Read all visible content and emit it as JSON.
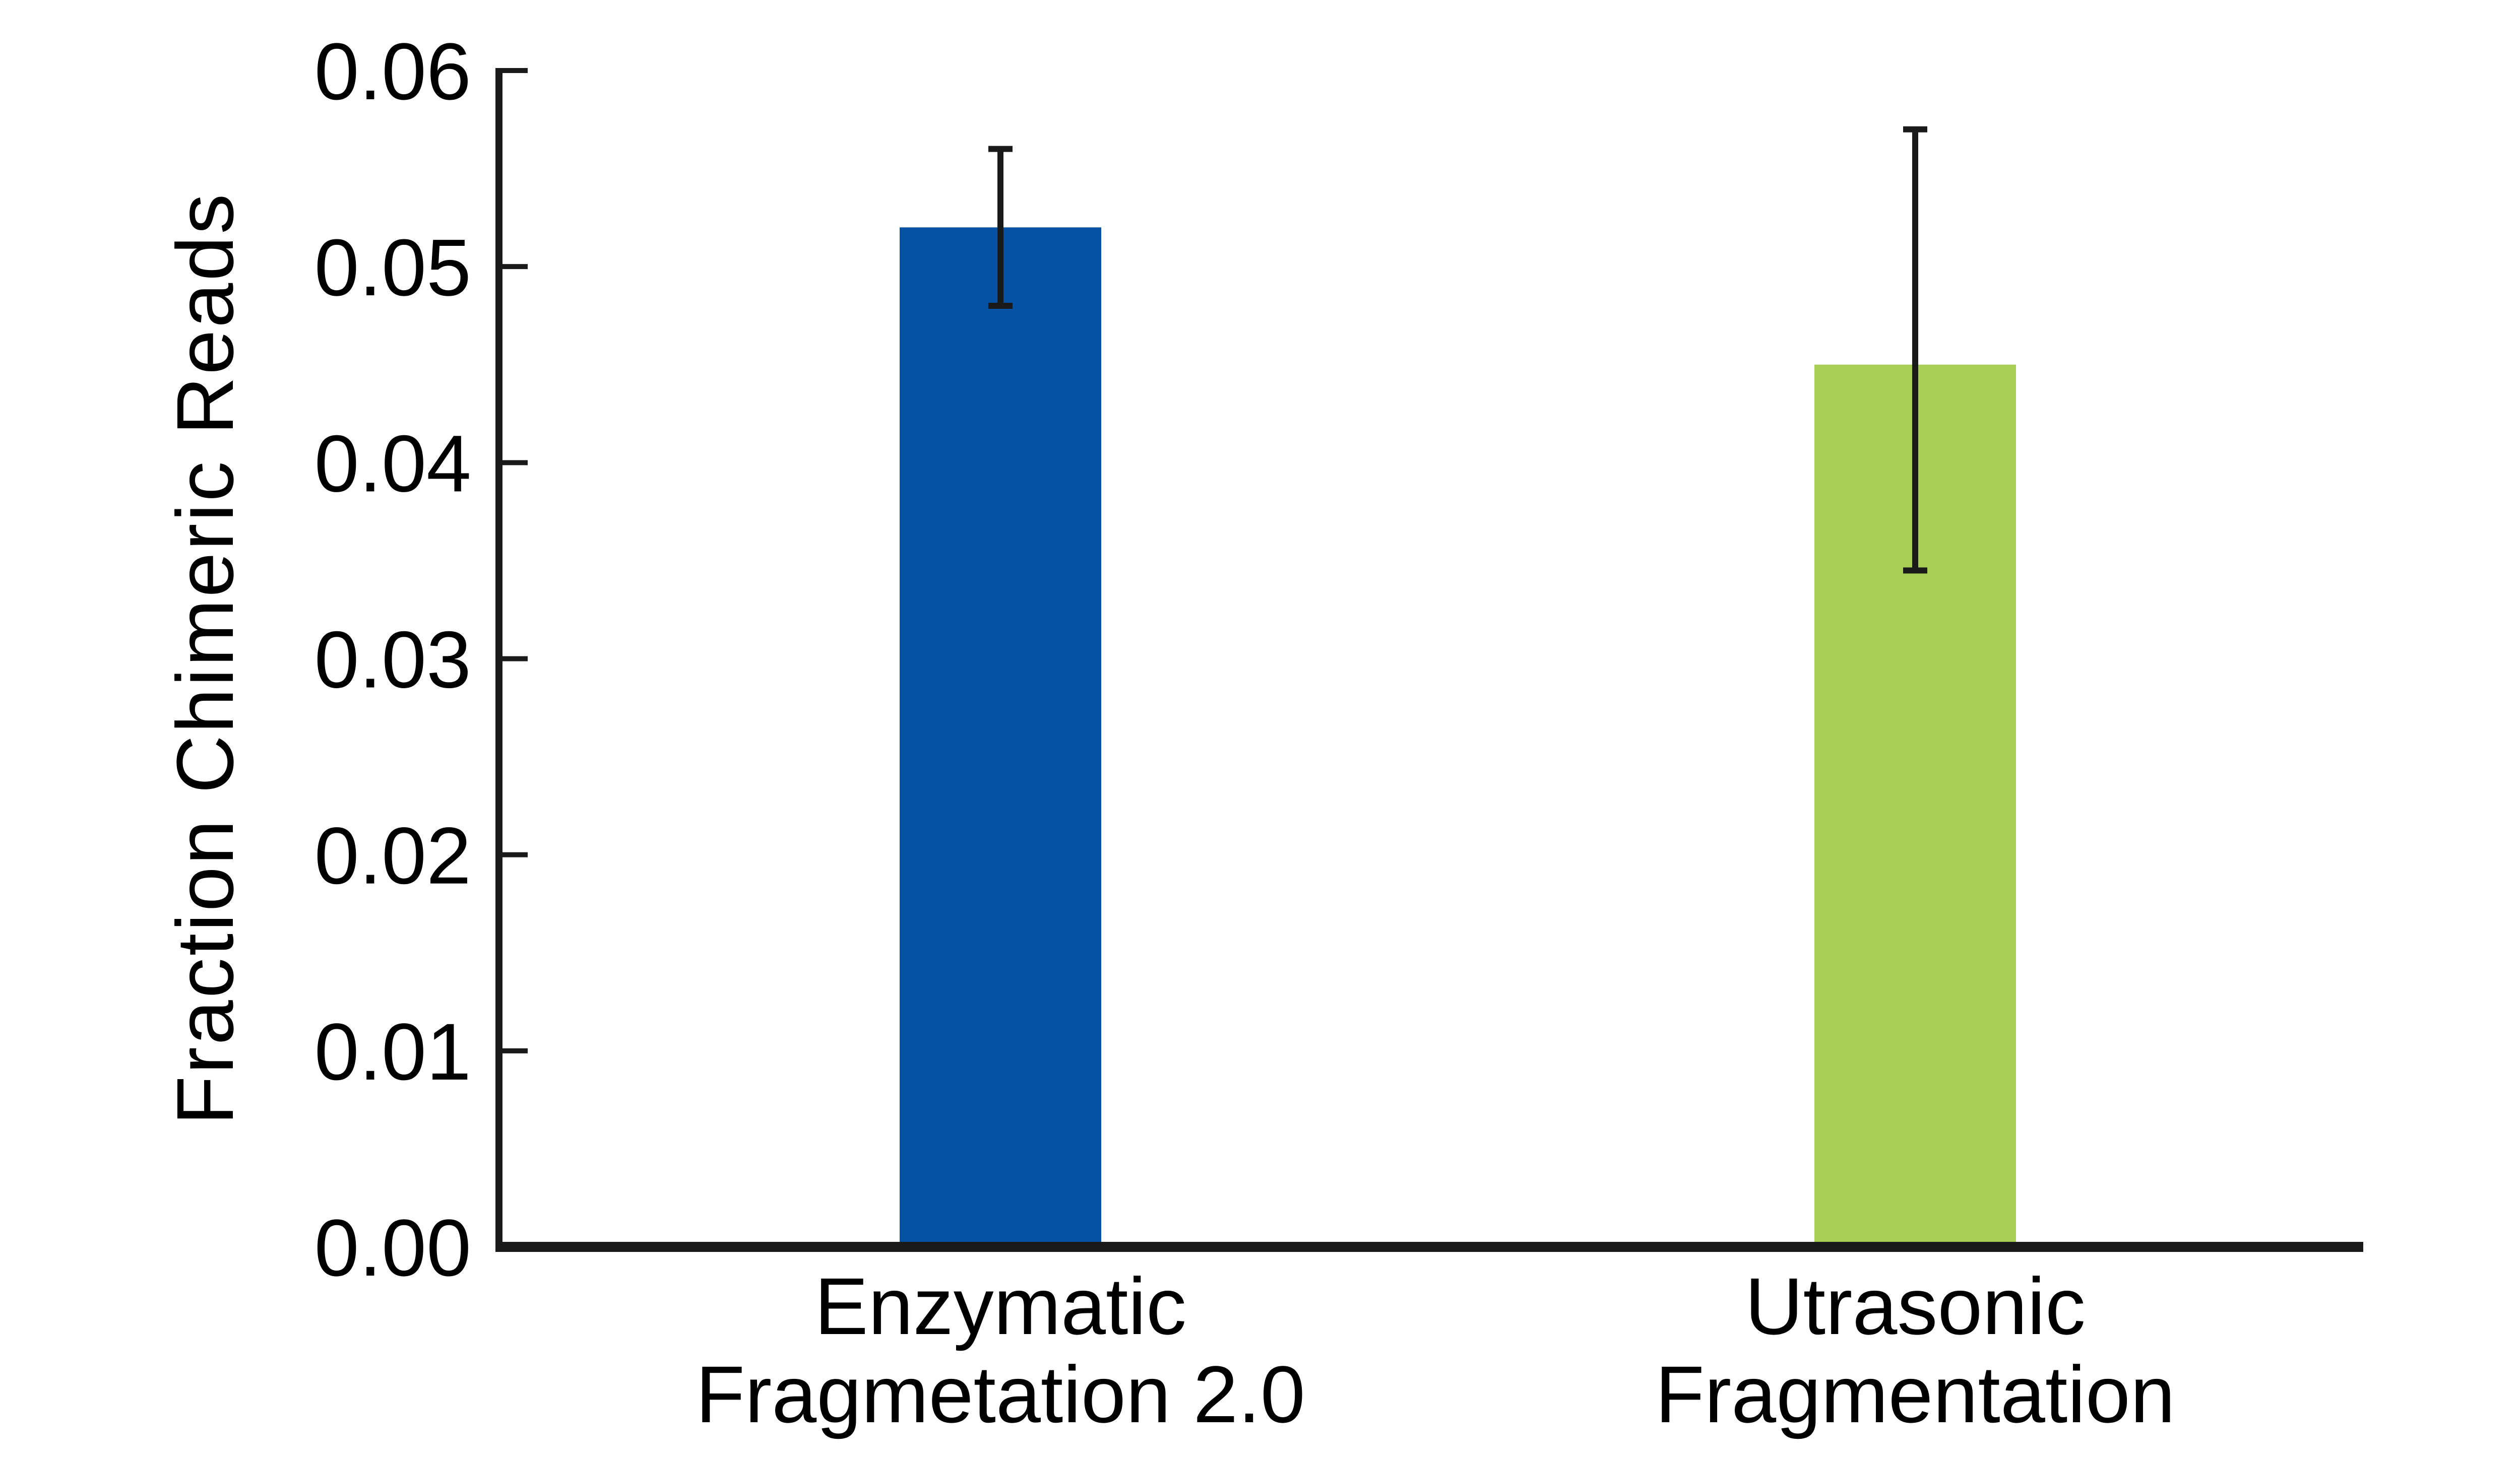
{
  "chart_data": {
    "type": "bar",
    "title": "",
    "xlabel": "",
    "ylabel": "Fraction Chimeric Reads",
    "ylim": [
      0,
      0.06
    ],
    "yticks": [
      0,
      0.01,
      0.02,
      0.03,
      0.04,
      0.05,
      0.06
    ],
    "ytick_labels": [
      "0.00",
      "0.01",
      "0.02",
      "0.03",
      "0.04",
      "0.05",
      "0.06"
    ],
    "grid": false,
    "legend": "none",
    "categories": [
      "Enzymatic Fragmetation 2.0",
      "Utrasonic Fragmentation"
    ],
    "category_lines": [
      [
        "Enzymatic",
        "Fragmetation 2.0"
      ],
      [
        "Utrasonic",
        "Fragmentation"
      ]
    ],
    "series": [
      {
        "name": "Fraction Chimeric Reads",
        "values": [
          0.052,
          0.045
        ],
        "error_low": [
          0.048,
          0.0345
        ],
        "error_high": [
          0.056,
          0.057
        ]
      }
    ],
    "bar_colors": [
      "#0552A5",
      "#A9CE56"
    ],
    "axis_color": "#1A1A1A",
    "error_bar_color": "#1A1A1A",
    "text_color": "#000000",
    "background_color": "#FFFFFF"
  }
}
